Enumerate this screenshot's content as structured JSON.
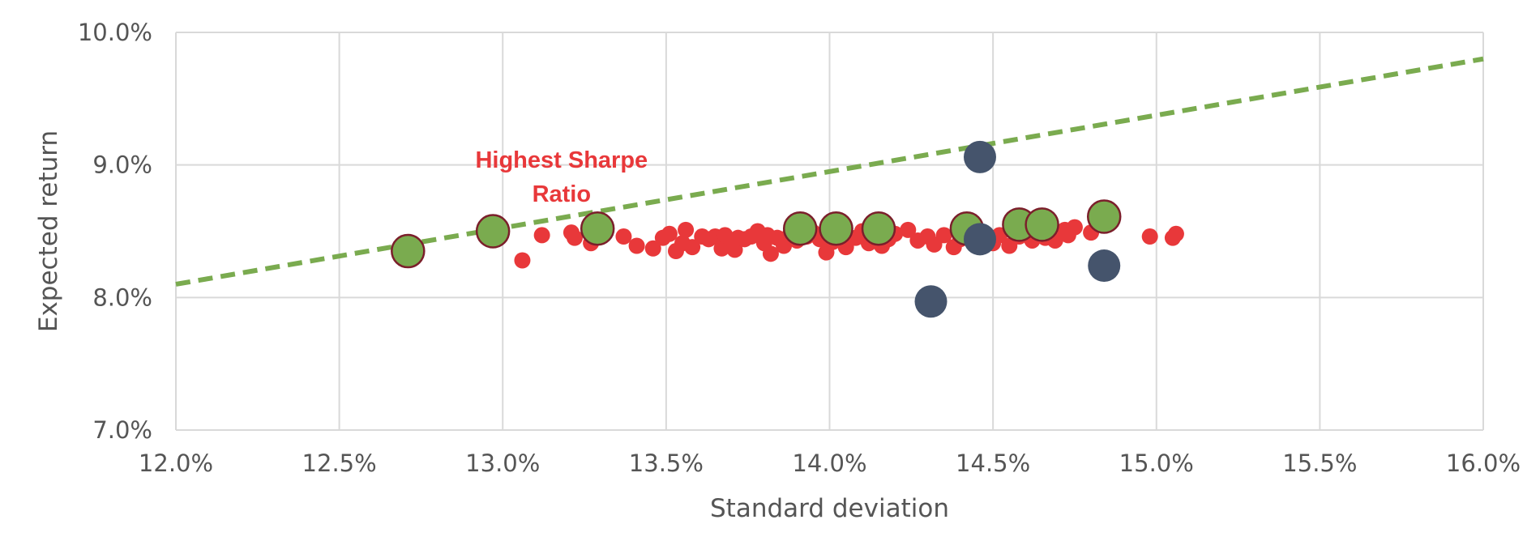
{
  "chart_data": {
    "type": "scatter",
    "xlabel": "Standard deviation",
    "ylabel": "Expected return",
    "xlim": [
      0.12,
      0.16
    ],
    "ylim": [
      0.07,
      0.1
    ],
    "x_ticks": [
      0.12,
      0.125,
      0.13,
      0.135,
      0.14,
      0.145,
      0.15,
      0.155,
      0.16
    ],
    "x_tick_labels": [
      "12.0%",
      "12.5%",
      "13.0%",
      "13.5%",
      "14.0%",
      "14.5%",
      "15.0%",
      "15.5%",
      "16.0%"
    ],
    "y_ticks": [
      0.07,
      0.08,
      0.09,
      0.1
    ],
    "y_tick_labels": [
      "7.0%",
      "8.0%",
      "9.0%",
      "10.0%"
    ],
    "grid": true,
    "annotations": [
      {
        "text_lines": [
          "Highest Sharpe",
          "Ratio"
        ],
        "x": 0.1318,
        "y": 0.0898
      }
    ],
    "line": {
      "style": "dashed",
      "color": "#7aab4f",
      "points": [
        [
          0.12,
          0.081
        ],
        [
          0.16,
          0.098
        ]
      ]
    },
    "series": [
      {
        "color": "#e8383a",
        "marker": "small-circle",
        "points": [
          [
            0.1306,
            0.0828
          ],
          [
            0.1312,
            0.0847
          ],
          [
            0.1321,
            0.0849
          ],
          [
            0.1322,
            0.0845
          ],
          [
            0.1327,
            0.0841
          ],
          [
            0.1337,
            0.0846
          ],
          [
            0.1341,
            0.0839
          ],
          [
            0.1346,
            0.0837
          ],
          [
            0.1349,
            0.0845
          ],
          [
            0.1351,
            0.0848
          ],
          [
            0.1353,
            0.0835
          ],
          [
            0.1355,
            0.0841
          ],
          [
            0.1356,
            0.0851
          ],
          [
            0.1358,
            0.0838
          ],
          [
            0.1361,
            0.0846
          ],
          [
            0.1363,
            0.0844
          ],
          [
            0.1365,
            0.0846
          ],
          [
            0.1367,
            0.0837
          ],
          [
            0.1368,
            0.0847
          ],
          [
            0.137,
            0.0842
          ],
          [
            0.1371,
            0.0836
          ],
          [
            0.1372,
            0.0845
          ],
          [
            0.1374,
            0.0844
          ],
          [
            0.1376,
            0.0846
          ],
          [
            0.1378,
            0.085
          ],
          [
            0.138,
            0.0841
          ],
          [
            0.1381,
            0.0847
          ],
          [
            0.1382,
            0.0833
          ],
          [
            0.1384,
            0.0845
          ],
          [
            0.1386,
            0.0839
          ],
          [
            0.1388,
            0.0848
          ],
          [
            0.139,
            0.0843
          ],
          [
            0.1393,
            0.0846
          ],
          [
            0.1395,
            0.0849
          ],
          [
            0.1397,
            0.0844
          ],
          [
            0.1399,
            0.0834
          ],
          [
            0.1401,
            0.0842
          ],
          [
            0.1403,
            0.0847
          ],
          [
            0.1405,
            0.0838
          ],
          [
            0.1408,
            0.0845
          ],
          [
            0.141,
            0.085
          ],
          [
            0.1412,
            0.0841
          ],
          [
            0.1414,
            0.0847
          ],
          [
            0.1416,
            0.0839
          ],
          [
            0.1418,
            0.0844
          ],
          [
            0.142,
            0.0848
          ],
          [
            0.1424,
            0.0851
          ],
          [
            0.1427,
            0.0843
          ],
          [
            0.143,
            0.0846
          ],
          [
            0.1432,
            0.084
          ],
          [
            0.1435,
            0.0847
          ],
          [
            0.1438,
            0.0838
          ],
          [
            0.144,
            0.0844
          ],
          [
            0.1443,
            0.0849
          ],
          [
            0.1448,
            0.0845
          ],
          [
            0.145,
            0.0841
          ],
          [
            0.1452,
            0.0847
          ],
          [
            0.1455,
            0.0839
          ],
          [
            0.1458,
            0.0846
          ],
          [
            0.146,
            0.085
          ],
          [
            0.1462,
            0.0843
          ],
          [
            0.1464,
            0.0848
          ],
          [
            0.1466,
            0.0845
          ],
          [
            0.1469,
            0.0843
          ],
          [
            0.1472,
            0.0851
          ],
          [
            0.1473,
            0.0847
          ],
          [
            0.1475,
            0.0853
          ],
          [
            0.148,
            0.0849
          ],
          [
            0.1483,
            0.0855
          ],
          [
            0.1498,
            0.0846
          ],
          [
            0.1505,
            0.0845
          ],
          [
            0.1506,
            0.0848
          ]
        ]
      },
      {
        "color": "#7aab4f",
        "marker": "large-circle",
        "points": [
          [
            0.1271,
            0.0835
          ],
          [
            0.1297,
            0.085
          ],
          [
            0.1329,
            0.0852
          ],
          [
            0.1391,
            0.0852
          ],
          [
            0.1402,
            0.0852
          ],
          [
            0.1415,
            0.0852
          ],
          [
            0.1442,
            0.0852
          ],
          [
            0.1458,
            0.0855
          ],
          [
            0.1465,
            0.0855
          ],
          [
            0.1484,
            0.0861
          ]
        ]
      },
      {
        "color": "#45546c",
        "marker": "large-circle",
        "points": [
          [
            0.1446,
            0.0906
          ],
          [
            0.1431,
            0.0797
          ],
          [
            0.1446,
            0.0844
          ],
          [
            0.1484,
            0.0824
          ]
        ]
      }
    ]
  }
}
